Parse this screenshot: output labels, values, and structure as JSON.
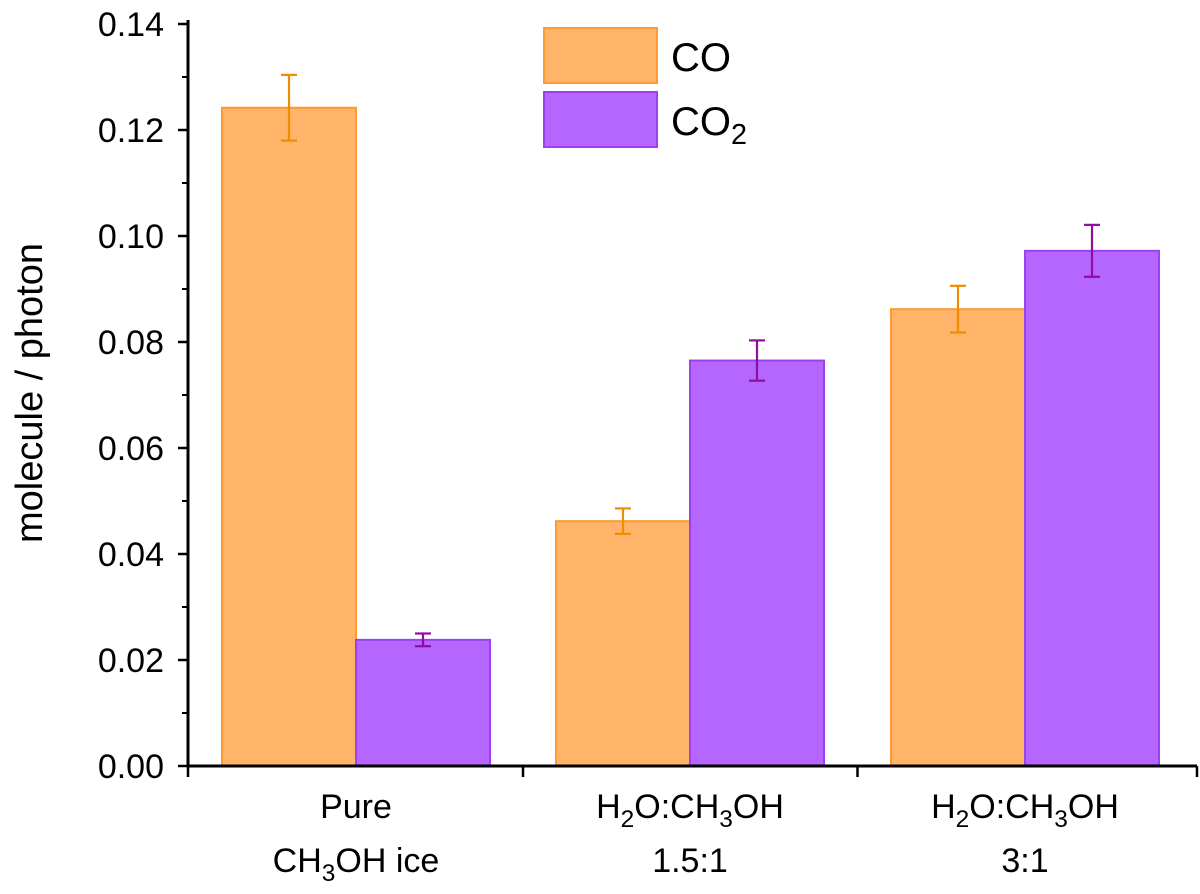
{
  "chart_data": {
    "type": "bar",
    "title": "",
    "xlabel": "",
    "ylabel": "molecule / photon",
    "ylim": [
      0,
      0.14
    ],
    "yticks": [
      "0.00",
      "0.02",
      "0.04",
      "0.06",
      "0.08",
      "0.10",
      "0.12",
      "0.14"
    ],
    "categories": [
      {
        "lines": [
          [
            {
              "t": "Pure"
            }
          ],
          [
            {
              "t": "CH"
            },
            {
              "t": "3",
              "sub": true
            },
            {
              "t": "OH ice"
            }
          ]
        ]
      },
      {
        "lines": [
          [
            {
              "t": "H"
            },
            {
              "t": "2",
              "sub": true
            },
            {
              "t": "O:CH"
            },
            {
              "t": "3",
              "sub": true
            },
            {
              "t": "OH"
            }
          ],
          [
            {
              "t": "1.5:1"
            }
          ]
        ]
      },
      {
        "lines": [
          [
            {
              "t": "H"
            },
            {
              "t": "2",
              "sub": true
            },
            {
              "t": "O:CH"
            },
            {
              "t": "3",
              "sub": true
            },
            {
              "t": "OH"
            }
          ],
          [
            {
              "t": "3:1"
            }
          ]
        ]
      }
    ],
    "series": [
      {
        "name": "CO",
        "label": [
          {
            "t": "CO"
          }
        ],
        "fill": "#ffb469",
        "stroke": "#ff9a33",
        "error_color": "#f08c00",
        "values": [
          0.1242,
          0.0462,
          0.0862
        ],
        "errors": [
          0.0062,
          0.0024,
          0.0044
        ]
      },
      {
        "name": "CO2",
        "label": [
          {
            "t": "CO"
          },
          {
            "t": "2",
            "sub": true
          }
        ],
        "fill": "#b566ff",
        "stroke": "#9c40f0",
        "error_color": "#8f0e9c",
        "values": [
          0.0238,
          0.0765,
          0.0972
        ],
        "errors": [
          0.0012,
          0.0038,
          0.0049
        ]
      }
    ],
    "legend": "top-center"
  }
}
